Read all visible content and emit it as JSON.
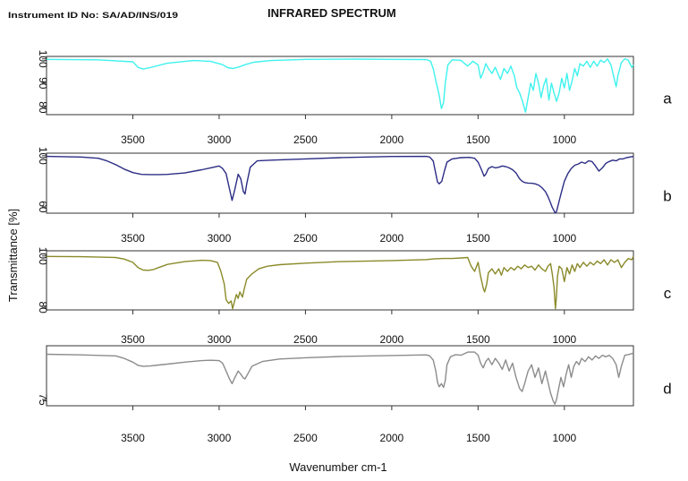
{
  "header": {
    "instrument_id": "Instrument ID No: SA/AD/INS/019",
    "title": "INFRARED SPECTRUM"
  },
  "chart_data": {
    "type": "line",
    "title": "INFRARED SPECTRUM",
    "xlabel": "Wavenumber cm-1",
    "ylabel": "Transmittance [%]",
    "xlim": [
      4000,
      600
    ],
    "x_ticks": [
      "3500",
      "3000",
      "2500",
      "2000",
      "1500",
      "1000"
    ],
    "grid": false,
    "panels": [
      {
        "label": "a",
        "color": "#3ef2ee",
        "ylim": [
          77,
          101
        ],
        "y_ticks": [
          "100",
          "90",
          "80"
        ],
        "x": [
          4000,
          3700,
          3500,
          3470,
          3440,
          3400,
          3300,
          3150,
          3050,
          2980,
          2950,
          2920,
          2880,
          2850,
          2800,
          2700,
          2500,
          2200,
          2000,
          1800,
          1775,
          1760,
          1745,
          1725,
          1712,
          1700,
          1690,
          1675,
          1650,
          1600,
          1560,
          1530,
          1500,
          1485,
          1470,
          1455,
          1440,
          1420,
          1400,
          1385,
          1370,
          1350,
          1330,
          1310,
          1290,
          1275,
          1260,
          1245,
          1235,
          1225,
          1210,
          1195,
          1180,
          1165,
          1150,
          1135,
          1120,
          1105,
          1090,
          1075,
          1060,
          1045,
          1030,
          1015,
          1000,
          985,
          970,
          955,
          940,
          925,
          910,
          890,
          870,
          850,
          830,
          810,
          790,
          770,
          750,
          730,
          715,
          700,
          690,
          670,
          650,
          630,
          610,
          600
        ],
        "y": [
          99.8,
          99.6,
          98.8,
          96.5,
          95.8,
          96.4,
          98.2,
          99.3,
          99.0,
          97.6,
          96.4,
          96.0,
          96.8,
          97.6,
          98.6,
          99.3,
          99.8,
          99.9,
          99.8,
          99.7,
          99.0,
          96.0,
          91.0,
          85.0,
          79.5,
          82.0,
          90.0,
          97.5,
          99.6,
          99.4,
          97.0,
          99.0,
          97.5,
          92.0,
          94.5,
          98.0,
          96.0,
          94.0,
          96.5,
          94.0,
          91.5,
          96.0,
          94.0,
          97.0,
          93.0,
          88.0,
          86.0,
          83.0,
          80.5,
          78.0,
          84.0,
          90.0,
          87.0,
          94.0,
          90.0,
          84.0,
          89.0,
          92.0,
          83.0,
          90.0,
          86.0,
          82.5,
          86.0,
          92.0,
          88.0,
          94.0,
          87.0,
          91.0,
          96.0,
          93.0,
          98.0,
          97.0,
          99.0,
          96.5,
          99.0,
          97.0,
          99.5,
          98.5,
          100.0,
          97.5,
          93.0,
          88.5,
          93.0,
          98.5,
          100.0,
          99.5,
          96.5,
          97.5
        ]
      },
      {
        "label": "b",
        "color": "#2d2d86",
        "ylim": [
          55,
          102
        ],
        "y_ticks": [
          "100",
          "60"
        ],
        "x": [
          4000,
          3800,
          3700,
          3650,
          3600,
          3550,
          3500,
          3450,
          3400,
          3350,
          3300,
          3200,
          3100,
          3050,
          3000,
          2980,
          2960,
          2940,
          2925,
          2910,
          2890,
          2875,
          2860,
          2850,
          2840,
          2820,
          2780,
          2700,
          2500,
          2300,
          2000,
          1800,
          1780,
          1760,
          1745,
          1735,
          1725,
          1710,
          1695,
          1680,
          1650,
          1600,
          1550,
          1520,
          1500,
          1480,
          1465,
          1455,
          1440,
          1420,
          1400,
          1380,
          1360,
          1340,
          1320,
          1300,
          1280,
          1260,
          1245,
          1230,
          1210,
          1190,
          1170,
          1150,
          1130,
          1110,
          1095,
          1080,
          1070,
          1060,
          1055,
          1050,
          1045,
          1035,
          1020,
          1000,
          980,
          960,
          940,
          920,
          900,
          880,
          860,
          840,
          820,
          800,
          780,
          760,
          740,
          720,
          700,
          680,
          660,
          640,
          620,
          600
        ],
        "y": [
          99.5,
          99.0,
          98.0,
          96.0,
          93.0,
          89.5,
          86.8,
          85.4,
          85.2,
          85.2,
          85.4,
          86.5,
          89.0,
          90.5,
          92.0,
          90.0,
          86.0,
          74.0,
          65.0,
          73.0,
          85.5,
          82.0,
          72.0,
          70.0,
          78.0,
          91.0,
          96.0,
          96.5,
          97.5,
          98.5,
          99.4,
          99.5,
          99.0,
          96.0,
          86.0,
          79.5,
          78.0,
          80.0,
          88.0,
          95.0,
          97.5,
          98.5,
          98.7,
          98.0,
          95.0,
          89.0,
          84.0,
          85.5,
          90.0,
          91.5,
          90.5,
          91.0,
          92.0,
          91.5,
          90.5,
          89.0,
          86.5,
          82.0,
          80.0,
          79.0,
          78.6,
          78.4,
          78.0,
          77.0,
          75.0,
          72.0,
          68.0,
          63.0,
          59.5,
          57.0,
          55.5,
          55.2,
          56.5,
          62.0,
          70.0,
          80.0,
          86.0,
          90.0,
          92.5,
          93.5,
          95.0,
          94.0,
          96.0,
          95.5,
          92.0,
          88.0,
          90.5,
          94.0,
          95.5,
          96.5,
          96.0,
          97.5,
          97.5,
          98.5,
          99.0,
          99.5
        ]
      },
      {
        "label": "c",
        "color": "#8a8a2a",
        "ylim": [
          79,
          102
        ],
        "y_ticks": [
          "100",
          "80"
        ],
        "x": [
          4000,
          3800,
          3600,
          3550,
          3500,
          3470,
          3440,
          3410,
          3380,
          3350,
          3300,
          3200,
          3100,
          3050,
          3010,
          2990,
          2970,
          2960,
          2945,
          2930,
          2922,
          2912,
          2900,
          2890,
          2880,
          2865,
          2855,
          2840,
          2810,
          2770,
          2720,
          2650,
          2500,
          2300,
          2000,
          1800,
          1750,
          1700,
          1650,
          1600,
          1560,
          1540,
          1520,
          1500,
          1485,
          1470,
          1462,
          1450,
          1440,
          1420,
          1400,
          1380,
          1365,
          1350,
          1330,
          1310,
          1290,
          1270,
          1250,
          1230,
          1210,
          1190,
          1170,
          1150,
          1130,
          1110,
          1095,
          1080,
          1070,
          1060,
          1052,
          1046,
          1040,
          1030,
          1015,
          1000,
          985,
          970,
          955,
          940,
          925,
          910,
          890,
          870,
          850,
          830,
          810,
          790,
          770,
          750,
          730,
          710,
          690,
          670,
          650,
          630,
          610,
          600
        ],
        "y": [
          99.8,
          99.7,
          99.4,
          98.8,
          97.5,
          95.5,
          94.5,
          94.4,
          94.7,
          95.5,
          96.7,
          97.8,
          98.3,
          98.2,
          97.5,
          94.0,
          89.0,
          83.0,
          81.5,
          82.5,
          79.5,
          82.0,
          85.0,
          83.5,
          86.0,
          84.0,
          87.0,
          91.0,
          93.0,
          95.0,
          96.0,
          96.6,
          97.2,
          97.8,
          98.2,
          98.6,
          98.9,
          99.0,
          99.0,
          99.2,
          99.4,
          96.0,
          94.0,
          97.5,
          92.0,
          87.5,
          86.0,
          89.0,
          93.5,
          95.0,
          93.0,
          95.0,
          92.5,
          95.5,
          94.0,
          95.5,
          94.5,
          96.0,
          95.0,
          96.5,
          95.5,
          96.0,
          94.5,
          96.5,
          95.0,
          94.0,
          96.0,
          97.0,
          93.0,
          88.0,
          79.5,
          84.0,
          92.0,
          96.0,
          95.0,
          90.0,
          95.5,
          93.0,
          96.5,
          94.0,
          97.0,
          95.5,
          97.5,
          96.0,
          97.5,
          96.5,
          98.0,
          97.0,
          98.5,
          96.5,
          98.5,
          97.5,
          98.5,
          95.5,
          97.5,
          99.0,
          98.5,
          99.8
        ]
      },
      {
        "label": "d",
        "color": "#8c8c8c",
        "ylim": [
          73,
          92
        ],
        "y_ticks": [
          "75"
        ],
        "x": [
          4000,
          3800,
          3600,
          3550,
          3500,
          3470,
          3440,
          3400,
          3350,
          3300,
          3200,
          3100,
          3050,
          3000,
          2980,
          2960,
          2940,
          2925,
          2910,
          2890,
          2875,
          2860,
          2850,
          2835,
          2810,
          2750,
          2650,
          2500,
          2300,
          2000,
          1800,
          1780,
          1760,
          1745,
          1735,
          1725,
          1712,
          1700,
          1690,
          1680,
          1660,
          1630,
          1600,
          1560,
          1520,
          1500,
          1485,
          1470,
          1455,
          1440,
          1420,
          1400,
          1380,
          1360,
          1340,
          1320,
          1300,
          1280,
          1260,
          1245,
          1230,
          1210,
          1190,
          1170,
          1150,
          1130,
          1110,
          1095,
          1080,
          1065,
          1055,
          1045,
          1035,
          1020,
          1005,
          990,
          975,
          960,
          945,
          930,
          915,
          900,
          880,
          860,
          840,
          820,
          800,
          780,
          760,
          740,
          720,
          700,
          685,
          670,
          650,
          630,
          610,
          600
        ],
        "y": [
          89.3,
          89.1,
          88.8,
          88.0,
          86.8,
          85.8,
          85.5,
          85.6,
          85.9,
          86.2,
          86.8,
          87.3,
          87.4,
          87.3,
          86.5,
          84.0,
          81.5,
          80.0,
          81.8,
          84.0,
          83.0,
          81.8,
          81.5,
          83.0,
          85.5,
          87.0,
          87.8,
          88.2,
          88.6,
          88.9,
          89.1,
          88.8,
          87.5,
          84.0,
          80.5,
          79.0,
          80.0,
          78.8,
          81.0,
          86.0,
          88.5,
          89.2,
          89.0,
          90.0,
          90.0,
          89.0,
          86.5,
          85.0,
          87.0,
          88.0,
          86.0,
          88.0,
          86.5,
          84.5,
          87.5,
          84.0,
          86.5,
          82.0,
          78.5,
          77.5,
          80.0,
          84.0,
          86.0,
          82.0,
          85.0,
          80.0,
          84.0,
          80.5,
          77.0,
          74.5,
          73.5,
          75.0,
          78.0,
          82.0,
          79.0,
          83.0,
          86.0,
          82.0,
          85.5,
          87.0,
          86.0,
          88.0,
          87.0,
          88.5,
          87.5,
          88.8,
          88.0,
          89.0,
          88.5,
          89.0,
          88.0,
          86.0,
          82.0,
          85.5,
          89.0,
          89.2,
          89.5,
          89.7
        ]
      }
    ]
  }
}
